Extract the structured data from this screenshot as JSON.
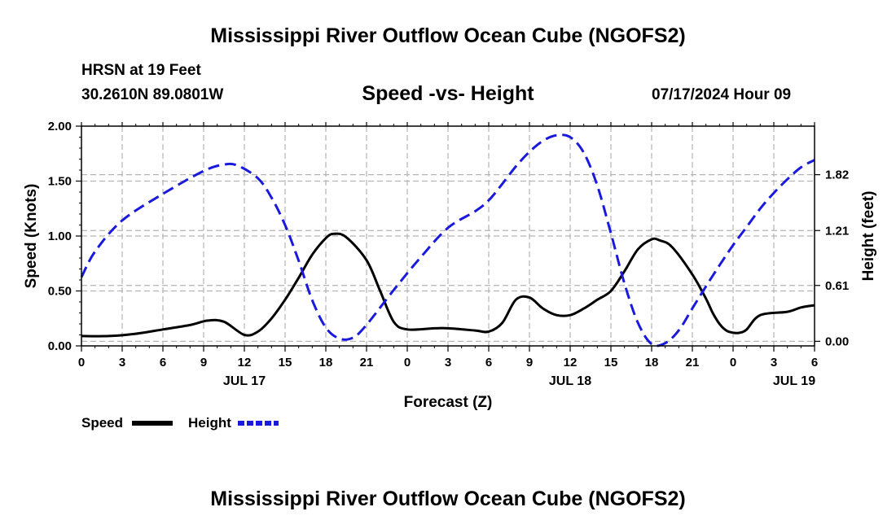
{
  "header": {
    "title": "Mississippi River Outflow Ocean Cube (NGOFS2)",
    "station": "HRSN at 19 Feet",
    "coordinates": "30.2610N  89.0801W",
    "subtitle": "Speed -vs- Height",
    "datetime": "07/17/2024 Hour 09"
  },
  "footer": {
    "title": "Mississippi River Outflow Ocean Cube (NGOFS2)"
  },
  "legend": {
    "speed_label": "Speed",
    "height_label": "Height"
  },
  "colors": {
    "speed": "#000000",
    "height": "#1a1adc",
    "grid": "#b4b4b4"
  },
  "chart_data": {
    "type": "line",
    "title": "Speed -vs- Height",
    "xlabel": "Forecast (Z)",
    "ylabel_left": "Speed (Knots)",
    "ylabel_right": "Height (feet)",
    "xlim": [
      0,
      54
    ],
    "x_ticks": [
      0,
      3,
      6,
      9,
      12,
      15,
      18,
      21,
      24,
      27,
      30,
      33,
      36,
      39,
      42,
      45,
      48,
      51,
      54
    ],
    "x_tick_labels": [
      "0",
      "3",
      "6",
      "9",
      "12",
      "15",
      "18",
      "21",
      "0",
      "3",
      "6",
      "9",
      "12",
      "15",
      "18",
      "21",
      "0",
      "3",
      "6"
    ],
    "day_labels": [
      {
        "x": 12,
        "label": "JUL 17"
      },
      {
        "x": 36,
        "label": "JUL 18"
      },
      {
        "x": 52.5,
        "label": "JUL 19"
      }
    ],
    "ylim_left": [
      0,
      2
    ],
    "y_ticks_left": [
      0,
      0.5,
      1.0,
      1.5,
      2.0
    ],
    "y_tick_labels_left": [
      "0.00",
      "0.50",
      "1.00",
      "1.50",
      "2.00"
    ],
    "ylim_right": [
      -0.05,
      2.35
    ],
    "y_ticks_right": [
      0,
      0.61,
      1.21,
      1.82
    ],
    "y_tick_labels_right": [
      "0.00",
      "0.61",
      "1.21",
      "1.82"
    ],
    "series": [
      {
        "name": "Speed",
        "axis": "left",
        "style": "solid",
        "x": [
          0,
          2,
          4,
          6,
          8,
          9.3,
          10.5,
          12,
          13,
          14,
          15,
          16,
          17,
          18,
          18.6,
          19.5,
          21,
          22,
          23,
          24,
          26,
          27,
          29,
          30,
          31,
          32,
          33,
          34,
          35,
          36,
          37,
          38,
          39,
          40,
          41,
          42,
          42.6,
          43.5,
          45,
          46,
          46.5,
          47,
          47.5,
          48,
          48.5,
          49,
          50,
          52,
          53,
          54
        ],
        "values": [
          0.09,
          0.09,
          0.11,
          0.15,
          0.19,
          0.23,
          0.22,
          0.1,
          0.13,
          0.25,
          0.42,
          0.62,
          0.83,
          0.98,
          1.02,
          0.99,
          0.78,
          0.5,
          0.22,
          0.15,
          0.16,
          0.16,
          0.14,
          0.13,
          0.21,
          0.42,
          0.44,
          0.34,
          0.28,
          0.28,
          0.34,
          0.42,
          0.5,
          0.68,
          0.88,
          0.97,
          0.96,
          0.9,
          0.65,
          0.43,
          0.3,
          0.2,
          0.14,
          0.12,
          0.12,
          0.15,
          0.28,
          0.31,
          0.35,
          0.37
        ]
      },
      {
        "name": "Height",
        "axis": "right",
        "style": "dashed",
        "x": [
          0,
          1,
          3,
          6,
          9,
          10.5,
          11.5,
          13,
          14,
          15,
          16,
          17,
          18,
          19,
          20,
          21,
          23,
          25,
          27,
          29,
          30,
          31,
          32,
          33,
          34,
          35,
          36,
          37,
          38,
          39,
          40,
          41,
          42,
          43,
          44,
          45,
          46,
          47,
          48,
          49,
          50,
          51,
          52,
          53,
          54
        ],
        "values": [
          0.7,
          0.98,
          1.32,
          1.61,
          1.86,
          1.93,
          1.92,
          1.78,
          1.57,
          1.27,
          0.88,
          0.45,
          0.15,
          0.03,
          0.04,
          0.18,
          0.56,
          0.92,
          1.24,
          1.42,
          1.54,
          1.72,
          1.91,
          2.07,
          2.19,
          2.25,
          2.23,
          2.06,
          1.7,
          1.18,
          0.63,
          0.2,
          -0.03,
          -0.02,
          0.12,
          0.36,
          0.6,
          0.83,
          1.05,
          1.25,
          1.45,
          1.62,
          1.77,
          1.9,
          1.98
        ]
      }
    ]
  }
}
